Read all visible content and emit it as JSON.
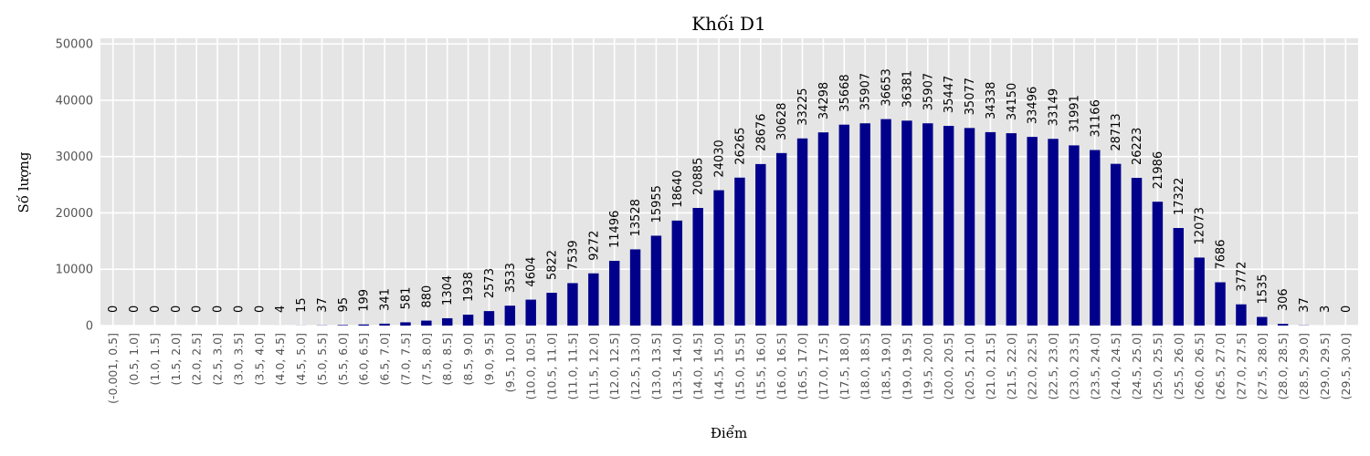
{
  "chart_data": {
    "type": "bar",
    "title": "Khối D1",
    "xlabel": "Điểm",
    "ylabel": "Số lượng",
    "ylim": [
      0,
      51000
    ],
    "yticks": [
      0,
      10000,
      20000,
      30000,
      40000,
      50000
    ],
    "grid": true,
    "bar_color": "#00008b",
    "background_color": "#e5e5e5",
    "categories": [
      "(-0.001, 0.5]",
      "(0.5, 1.0]",
      "(1.0, 1.5]",
      "(1.5, 2.0]",
      "(2.0, 2.5]",
      "(2.5, 3.0]",
      "(3.0, 3.5]",
      "(3.5, 4.0]",
      "(4.0, 4.5]",
      "(4.5, 5.0]",
      "(5.0, 5.5]",
      "(5.5, 6.0]",
      "(6.0, 6.5]",
      "(6.5, 7.0]",
      "(7.0, 7.5]",
      "(7.5, 8.0]",
      "(8.0, 8.5]",
      "(8.5, 9.0]",
      "(9.0, 9.5]",
      "(9.5, 10.0]",
      "(10.0, 10.5]",
      "(10.5, 11.0]",
      "(11.0, 11.5]",
      "(11.5, 12.0]",
      "(12.0, 12.5]",
      "(12.5, 13.0]",
      "(13.0, 13.5]",
      "(13.5, 14.0]",
      "(14.0, 14.5]",
      "(14.5, 15.0]",
      "(15.0, 15.5]",
      "(15.5, 16.0]",
      "(16.0, 16.5]",
      "(16.5, 17.0]",
      "(17.0, 17.5]",
      "(17.5, 18.0]",
      "(18.0, 18.5]",
      "(18.5, 19.0]",
      "(19.0, 19.5]",
      "(19.5, 20.0]",
      "(20.0, 20.5]",
      "(20.5, 21.0]",
      "(21.0, 21.5]",
      "(21.5, 22.0]",
      "(22.0, 22.5]",
      "(22.5, 23.0]",
      "(23.0, 23.5]",
      "(23.5, 24.0]",
      "(24.0, 24.5]",
      "(24.5, 25.0]",
      "(25.0, 25.5]",
      "(25.5, 26.0]",
      "(26.0, 26.5]",
      "(26.5, 27.0]",
      "(27.0, 27.5]",
      "(27.5, 28.0]",
      "(28.0, 28.5]",
      "(28.5, 29.0]",
      "(29.0, 29.5]",
      "(29.5, 30.0]"
    ],
    "values": [
      0,
      0,
      0,
      0,
      0,
      0,
      0,
      0,
      4,
      15,
      37,
      95,
      199,
      341,
      581,
      880,
      1304,
      1938,
      2573,
      3533,
      4604,
      5822,
      7539,
      9272,
      11496,
      13528,
      15955,
      18640,
      20885,
      24030,
      26265,
      28676,
      30628,
      33225,
      34298,
      35668,
      35907,
      36653,
      36381,
      35907,
      35447,
      35077,
      34338,
      34150,
      33496,
      33149,
      31991,
      31166,
      28713,
      26223,
      21986,
      17322,
      12073,
      7686,
      3772,
      1535,
      306,
      37,
      3,
      0
    ]
  }
}
